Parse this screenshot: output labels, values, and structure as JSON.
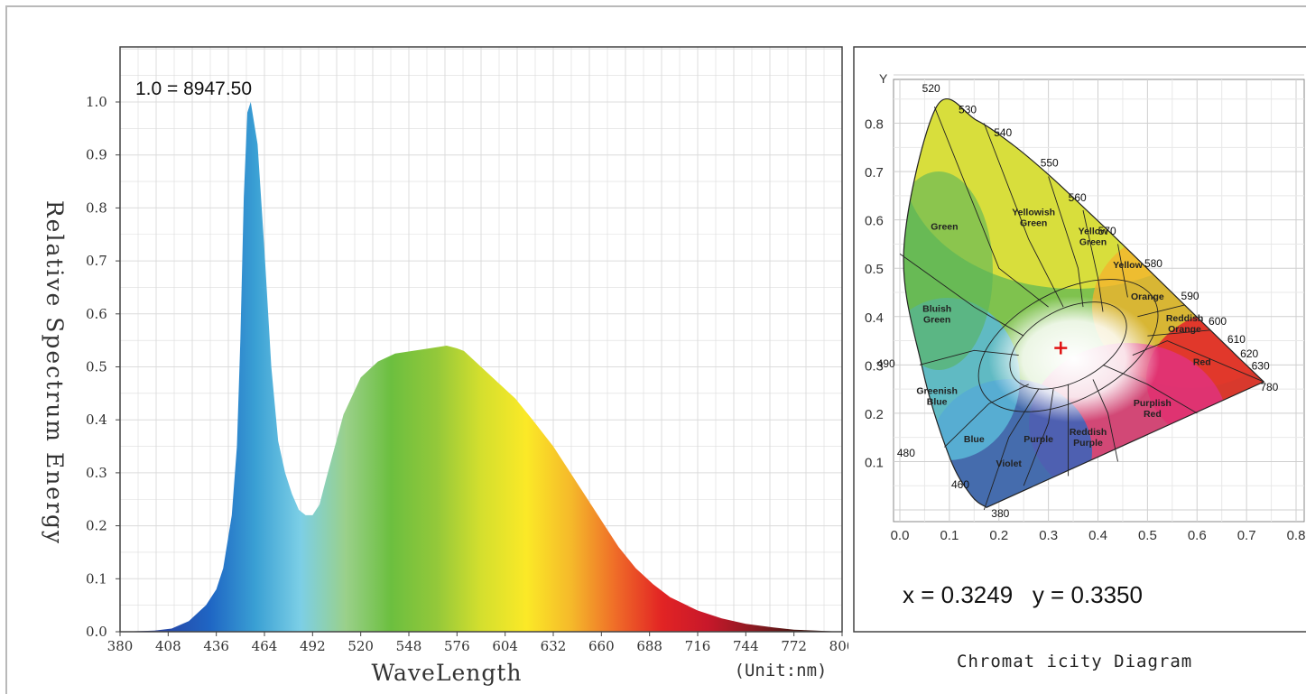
{
  "colors": {
    "frame": "#b9b9b9",
    "grid": "#dcdcdc",
    "axis": "#444444",
    "spectrum_stops": [
      "#2b2f7a",
      "#2748a8",
      "#1f66c4",
      "#3aa0d4",
      "#7ccfe6",
      "#9ad08a",
      "#6cbf3f",
      "#93c83a",
      "#d4df2e",
      "#fbe927",
      "#f5b92a",
      "#ef6a28",
      "#e22424",
      "#c8182a",
      "#8d1a22",
      "#4a1713",
      "#2a100c"
    ]
  },
  "spectrum_chart": {
    "annotation": "1.0 = 8947.50",
    "ylabel": "Relative Spectrum Energy",
    "xlabel": "WaveLength",
    "unit_label": "(Unit:nm)",
    "x_ticks": [
      "380",
      "408",
      "436",
      "464",
      "492",
      "520",
      "548",
      "576",
      "604",
      "632",
      "660",
      "688",
      "716",
      "744",
      "772",
      "800"
    ],
    "y_ticks": [
      "0.0",
      "0.1",
      "0.2",
      "0.3",
      "0.4",
      "0.5",
      "0.6",
      "0.7",
      "0.8",
      "0.9",
      "1.0"
    ]
  },
  "chart_data": [
    {
      "type": "area",
      "title": "",
      "annotation": "1.0 = 8947.50",
      "xlabel": "WaveLength",
      "ylabel": "Relative Spectrum Energy",
      "x_unit": "(Unit:nm)",
      "xlim": [
        380,
        800
      ],
      "ylim": [
        0,
        1.0
      ],
      "grid": true,
      "x": [
        380,
        400,
        410,
        420,
        430,
        436,
        440,
        445,
        448,
        450,
        452,
        454,
        456,
        460,
        464,
        468,
        472,
        476,
        480,
        484,
        488,
        492,
        496,
        500,
        505,
        510,
        520,
        530,
        540,
        550,
        560,
        570,
        576,
        580,
        590,
        600,
        610,
        620,
        632,
        640,
        650,
        660,
        670,
        680,
        690,
        700,
        716,
        730,
        744,
        760,
        772,
        785,
        800
      ],
      "y": [
        0.0,
        0.002,
        0.006,
        0.02,
        0.05,
        0.08,
        0.12,
        0.22,
        0.35,
        0.55,
        0.82,
        0.98,
        1.0,
        0.92,
        0.72,
        0.5,
        0.36,
        0.3,
        0.26,
        0.23,
        0.22,
        0.22,
        0.24,
        0.29,
        0.35,
        0.41,
        0.48,
        0.51,
        0.525,
        0.53,
        0.535,
        0.54,
        0.535,
        0.53,
        0.5,
        0.47,
        0.44,
        0.4,
        0.35,
        0.31,
        0.26,
        0.21,
        0.16,
        0.12,
        0.09,
        0.065,
        0.04,
        0.025,
        0.015,
        0.008,
        0.004,
        0.002,
        0.0
      ]
    },
    {
      "type": "scatter",
      "title": "Chromat icity Diagram",
      "xlabel": "",
      "ylabel": "Y",
      "xlim": [
        0.0,
        0.8
      ],
      "ylim": [
        0.0,
        0.9
      ],
      "grid": true,
      "x_ticks": [
        "0.0",
        "0.1",
        "0.2",
        "0.3",
        "0.4",
        "0.5",
        "0.6",
        "0.7",
        "0.8"
      ],
      "y_ticks": [
        "0.1",
        "0.2",
        "0.3",
        "0.4",
        "0.5",
        "0.6",
        "0.7",
        "0.8"
      ],
      "point": {
        "x": 0.3249,
        "y": 0.335
      },
      "readout": "x = 0.3249   y = 0.3350",
      "wavelength_labels": [
        "380",
        "460",
        "480",
        "490",
        "520",
        "530",
        "540",
        "550",
        "560",
        "570",
        "580",
        "590",
        "600",
        "610",
        "620",
        "630",
        "780"
      ],
      "region_labels": [
        "Green",
        "Yellowish Green",
        "Yellow Green",
        "Yellow",
        "Orange",
        "Reddish Orange",
        "Red",
        "Bluish Green",
        "Greenish Blue",
        "Blue",
        "Violet",
        "Purple",
        "Reddish Purple",
        "Purplish Red"
      ],
      "locus": [
        [
          0.175,
          0.005
        ],
        [
          0.144,
          0.03
        ],
        [
          0.1,
          0.11
        ],
        [
          0.045,
          0.295
        ],
        [
          0.008,
          0.538
        ],
        [
          0.074,
          0.834
        ],
        [
          0.155,
          0.806
        ],
        [
          0.23,
          0.754
        ],
        [
          0.302,
          0.692
        ],
        [
          0.373,
          0.624
        ],
        [
          0.444,
          0.555
        ],
        [
          0.512,
          0.487
        ],
        [
          0.575,
          0.424
        ],
        [
          0.627,
          0.372
        ],
        [
          0.665,
          0.334
        ],
        [
          0.691,
          0.308
        ],
        [
          0.735,
          0.265
        ]
      ]
    }
  ]
}
